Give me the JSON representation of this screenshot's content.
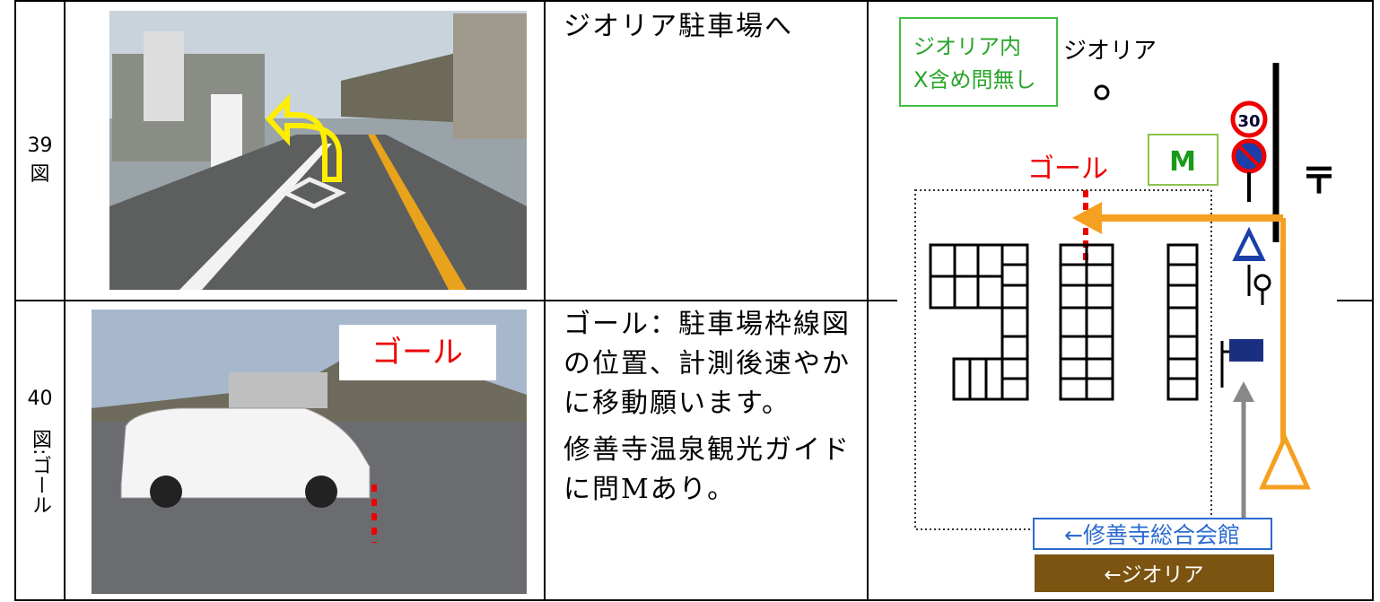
{
  "rows": [
    {
      "label": [
        "39",
        "図"
      ],
      "instruction": [
        "ジオリア駐車場へ"
      ]
    },
    {
      "label": [
        "40",
        "図:ゴール"
      ],
      "photo_label": "ゴール",
      "instruction": [
        "ゴール：駐車場枠線図の位置、計測後速やかに移動願います。",
        "修善寺温泉観光ガイドに問Mあり。"
      ]
    }
  ],
  "map": {
    "note": [
      "ジオリア内",
      "X含め問無し"
    ],
    "place": "ジオリア",
    "marker": "M",
    "goal": "ゴール",
    "speed_limit": "30",
    "post_office": "〒",
    "sign_blue": "←修善寺総合会館",
    "sign_brown": "←ジオリア"
  }
}
